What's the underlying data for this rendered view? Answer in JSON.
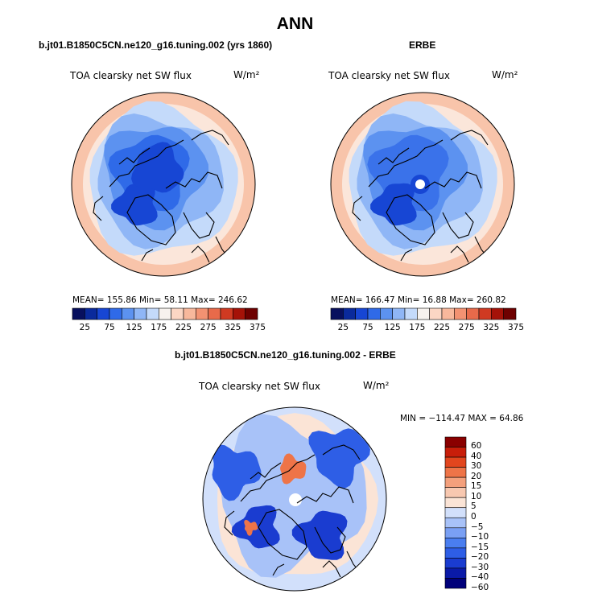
{
  "title": "ANN",
  "colors": {
    "scale": [
      "#08105e",
      "#0a2a9c",
      "#1746d4",
      "#2f6ae8",
      "#5c92f0",
      "#8fb6f6",
      "#c4dafa",
      "#f7f2ee",
      "#fbd6c4",
      "#f8b89c",
      "#f39272",
      "#e86a4a",
      "#d03a22",
      "#a51208",
      "#6e0000"
    ],
    "diff_scale": [
      "#00007a",
      "#0a1aa8",
      "#1a3cd0",
      "#2e5ee6",
      "#4a7ef0",
      "#7aa0f4",
      "#a8c2f8",
      "#d2e0fb",
      "#fbe4d6",
      "#f8c8b0",
      "#f4a07c",
      "#ee7448",
      "#e2461e",
      "#c81e0a",
      "#8a0000"
    ]
  },
  "chart_data": [
    {
      "type": "heatmap",
      "projection": "polar stereographic, north pole",
      "case_title": "b.jt01.B1850C5CN.ne120_g16.tuning.002 (yrs 1860)",
      "variable": "TOA clearsky net SW flux",
      "units": "W/m²",
      "stats": "MEAN= 155.86   Min=  58.11   Max= 246.62",
      "mean": 155.86,
      "min": 58.11,
      "max": 246.62,
      "colorbar_ticks": [
        "25",
        "75",
        "125",
        "175",
        "225",
        "275",
        "325",
        "375"
      ],
      "levels": [
        25,
        50,
        75,
        100,
        125,
        150,
        175,
        200,
        225,
        250,
        275,
        300,
        325,
        350,
        375
      ]
    },
    {
      "type": "heatmap",
      "projection": "polar stereographic, north pole",
      "case_title": "ERBE",
      "variable": "TOA clearsky net SW flux",
      "units": "W/m²",
      "stats": "MEAN= 166.47   Min=  16.88   Max= 260.82",
      "mean": 166.47,
      "min": 16.88,
      "max": 260.82,
      "colorbar_ticks": [
        "25",
        "75",
        "125",
        "175",
        "225",
        "275",
        "325",
        "375"
      ],
      "levels": [
        25,
        50,
        75,
        100,
        125,
        150,
        175,
        200,
        225,
        250,
        275,
        300,
        325,
        350,
        375
      ]
    },
    {
      "type": "heatmap",
      "projection": "polar stereographic, north pole",
      "case_title": "b.jt01.B1850C5CN.ne120_g16.tuning.002 - ERBE",
      "variable": "TOA clearsky net SW flux",
      "units": "W/m²",
      "stats": "MIN = −114.47 MAX =  64.86",
      "min": -114.47,
      "max": 64.86,
      "colorbar_ticks": [
        "60",
        "40",
        "30",
        "20",
        "15",
        "10",
        "5",
        "0",
        "−5",
        "−10",
        "−15",
        "−20",
        "−30",
        "−40",
        "−60"
      ],
      "levels": [
        60,
        40,
        30,
        20,
        15,
        10,
        5,
        0,
        -5,
        -10,
        -15,
        -20,
        -30,
        -40,
        -60
      ]
    }
  ]
}
